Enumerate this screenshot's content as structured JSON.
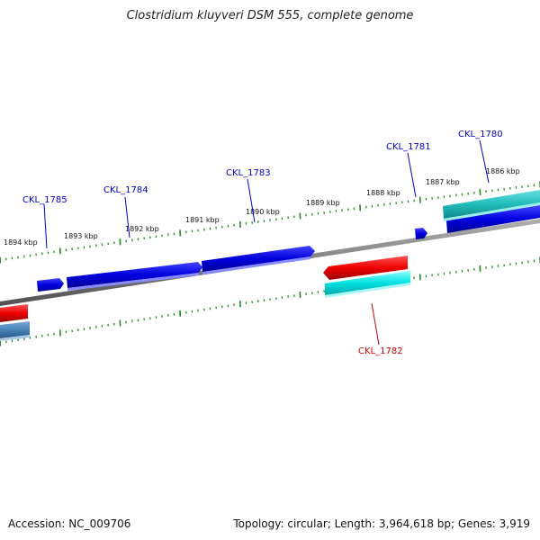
{
  "title": "Clostridium kluyveri DSM 555, complete genome",
  "footer": {
    "accession": "Accession: NC_009706",
    "summary": "Topology: circular; Length: 3,964,618 bp; Genes: 3,919"
  },
  "colors": {
    "backbone": "#808080",
    "forward_cds": "#0000dd",
    "reverse_cds": "#ee0000",
    "rna_teal": "#22bbbb",
    "rna_cyan": "#00e0e0",
    "misc_steelblue": "#4682b4",
    "ticks": "#228822",
    "label_forward": "#0000cc",
    "label_reverse": "#cc0000"
  },
  "kbp_labels": [
    "1894 kbp",
    "1893 kbp",
    "1892 kbp",
    "1891 kbp",
    "1890 kbp",
    "1889 kbp",
    "1888 kbp",
    "1887 kbp",
    "1886 kbp"
  ],
  "genes": [
    {
      "label": "CKL_1785",
      "strand": "forward"
    },
    {
      "label": "CKL_1784",
      "strand": "forward"
    },
    {
      "label": "CKL_1783",
      "strand": "forward"
    },
    {
      "label": "CKL_1781",
      "strand": "forward"
    },
    {
      "label": "CKL_1780",
      "strand": "forward"
    },
    {
      "label": "CKL_1782",
      "strand": "reverse"
    }
  ]
}
